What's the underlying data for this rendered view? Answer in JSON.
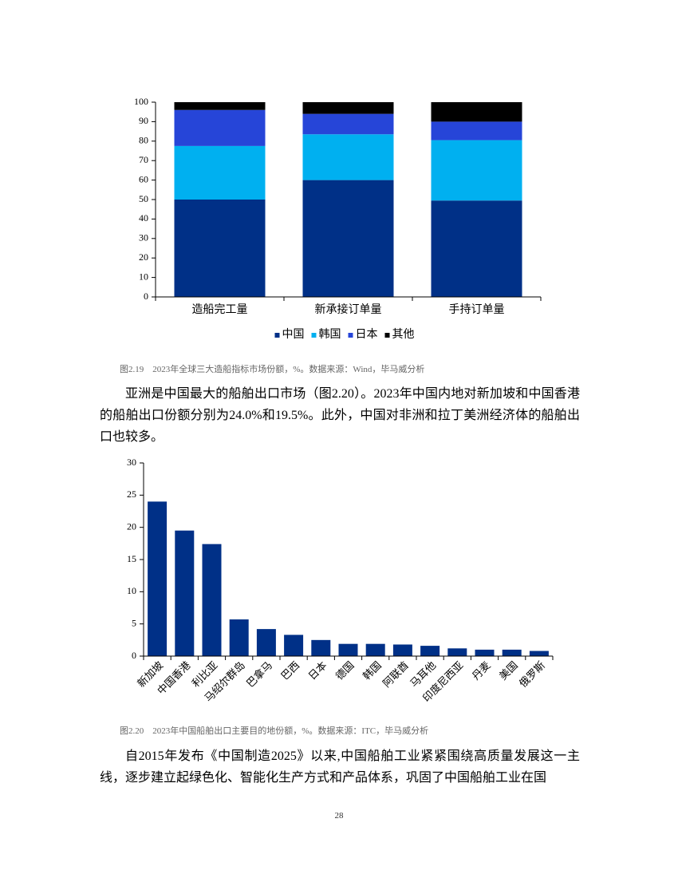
{
  "chart_data": [
    {
      "type": "bar",
      "stacked": true,
      "categories": [
        "造船完工量",
        "新承接订单量",
        "手持订单量"
      ],
      "series": [
        {
          "name": "中国",
          "color": "#003087",
          "values": [
            50,
            60,
            49.5
          ]
        },
        {
          "name": "韩国",
          "color": "#00b0f0",
          "values": [
            27.5,
            23.5,
            31
          ]
        },
        {
          "name": "日本",
          "color": "#2645d8",
          "values": [
            18.5,
            10.5,
            9.5
          ]
        },
        {
          "name": "其他",
          "color": "#000000",
          "values": [
            4,
            6,
            10
          ]
        }
      ],
      "ylim": [
        0,
        100
      ],
      "yticks": [
        0,
        10,
        20,
        30,
        40,
        50,
        60,
        70,
        80,
        90,
        100
      ],
      "grid": false,
      "legend": "bottom"
    },
    {
      "type": "bar",
      "categories": [
        "新加坡",
        "中国香港",
        "利比亚",
        "马绍尔群岛",
        "巴拿马",
        "巴西",
        "日本",
        "德国",
        "韩国",
        "阿联酋",
        "马耳他",
        "印度尼西亚",
        "丹麦",
        "美国",
        "俄罗斯"
      ],
      "values": [
        24.0,
        19.5,
        17.4,
        5.7,
        4.2,
        3.3,
        2.5,
        1.9,
        1.9,
        1.8,
        1.6,
        1.2,
        1.0,
        1.0,
        0.8
      ],
      "color": "#003087",
      "ylim": [
        0,
        30
      ],
      "yticks": [
        0,
        5,
        10,
        15,
        20,
        25,
        30
      ],
      "grid": false
    }
  ],
  "captions": [
    "图2.19　2023年全球三大造船指标市场份额，%。数据来源：Wind，毕马威分析",
    "图2.20　2023年中国船舶出口主要目的地份额，%。数据来源：ITC，毕马威分析"
  ],
  "paragraphs": [
    "亚洲是中国最大的船舶出口市场（图2.20）。2023年中国内地对新加坡和中国香港的船舶出口份额分别为24.0%和19.5%。此外，中国对非洲和拉丁美洲经济体的船舶出口也较多。",
    "自2015年发布《中国制造2025》以来,中国船舶工业紧紧围绕高质量发展这一主线，逐步建立起绿色化、智能化生产方式和产品体系，巩固了中国船舶工业在国"
  ],
  "page_number": "28"
}
